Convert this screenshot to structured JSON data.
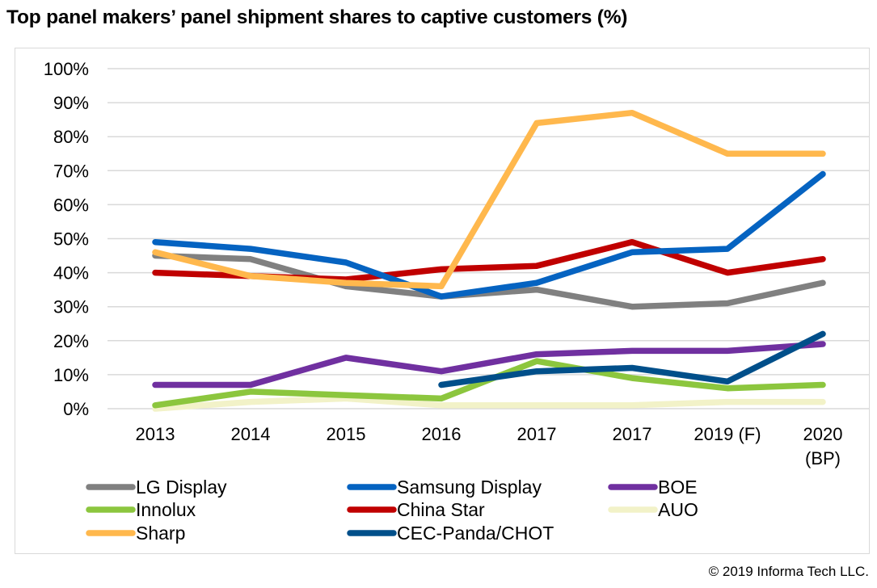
{
  "chart_data": {
    "type": "line",
    "title": "Top panel makers’ panel shipment shares to captive customers (%)",
    "xlabel": "",
    "ylabel": "",
    "ylim": [
      0,
      100
    ],
    "y_ticks": [
      "0%",
      "10%",
      "20%",
      "30%",
      "40%",
      "50%",
      "60%",
      "70%",
      "80%",
      "90%",
      "100%"
    ],
    "categories": [
      "2013",
      "2014",
      "2015",
      "2016",
      "2017",
      "2017",
      "2019 (F)",
      "2020 (BP)"
    ],
    "category_label_lines": [
      [
        "2013"
      ],
      [
        "2014"
      ],
      [
        "2015"
      ],
      [
        "2016"
      ],
      [
        "2017"
      ],
      [
        "2017"
      ],
      [
        "2019 (F)"
      ],
      [
        "2020",
        "(BP)"
      ]
    ],
    "grid": "horizontal",
    "legend_position": "bottom",
    "series": [
      {
        "name": "LG Display",
        "color": "#808080",
        "values": [
          45,
          44,
          36,
          33,
          35,
          30,
          31,
          37
        ]
      },
      {
        "name": "Samsung Display",
        "color": "#0563c1",
        "values": [
          49,
          47,
          43,
          33,
          37,
          46,
          47,
          69
        ]
      },
      {
        "name": "BOE",
        "color": "#7030a0",
        "values": [
          7,
          7,
          15,
          11,
          16,
          17,
          17,
          19
        ]
      },
      {
        "name": "Innolux",
        "color": "#8cc63e",
        "values": [
          1,
          5,
          4,
          3,
          14,
          9,
          6,
          7
        ]
      },
      {
        "name": "China Star",
        "color": "#c00000",
        "values": [
          40,
          39,
          38,
          41,
          42,
          49,
          40,
          44
        ]
      },
      {
        "name": "AUO",
        "color": "#f2f2c8",
        "values": [
          0,
          2,
          3,
          1,
          1,
          1,
          2,
          2
        ]
      },
      {
        "name": "Sharp",
        "color": "#ffb84d",
        "values": [
          46,
          39,
          37,
          36,
          84,
          87,
          75,
          75
        ]
      },
      {
        "name": "CEC-Panda/CHOT",
        "color": "#004f8a",
        "values": [
          null,
          null,
          null,
          7,
          11,
          12,
          8,
          22
        ]
      }
    ]
  },
  "copyright": "© 2019 Informa Tech LLC."
}
